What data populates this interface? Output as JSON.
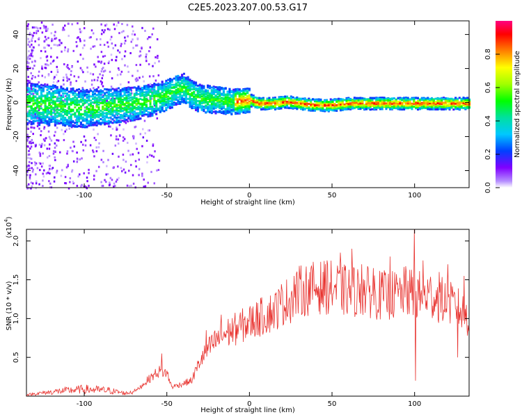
{
  "title": "C2E5.2023.207.00.53.G17",
  "chart_data": [
    {
      "type": "heatmap",
      "xlabel": "Height of straight line (km)",
      "ylabel": "Frequency (Hz)",
      "xlim": [
        -135,
        133
      ],
      "ylim": [
        -50,
        48
      ],
      "x_ticks": [
        "-100",
        "-50",
        "0",
        "50",
        "100"
      ],
      "x_tick_values": [
        -100,
        -50,
        0,
        50,
        100
      ],
      "y_ticks": [
        "-40",
        "-20",
        "0",
        "20",
        "40"
      ],
      "y_tick_values": [
        -40,
        -20,
        0,
        20,
        40
      ],
      "colorbar": {
        "label": "Normalized spectral amplitude",
        "ticks": [
          "0.0",
          "0.2",
          "0.4",
          "0.6",
          "0.8"
        ],
        "tick_values": [
          0.0,
          0.2,
          0.4,
          0.6,
          0.8
        ],
        "range": [
          0,
          1
        ]
      },
      "ridge_center_hz": [
        [
          -135,
          0
        ],
        [
          -120,
          -1
        ],
        [
          -100,
          -3
        ],
        [
          -90,
          -2
        ],
        [
          -80,
          -1
        ],
        [
          -70,
          0
        ],
        [
          -60,
          2
        ],
        [
          -50,
          5
        ],
        [
          -45,
          8
        ],
        [
          -40,
          9
        ],
        [
          -35,
          5
        ],
        [
          -30,
          3
        ],
        [
          -20,
          2
        ],
        [
          -10,
          1
        ],
        [
          0,
          2
        ],
        [
          5,
          0
        ],
        [
          15,
          0
        ],
        [
          22,
          1
        ],
        [
          30,
          0
        ],
        [
          40,
          -1
        ],
        [
          50,
          -1
        ],
        [
          60,
          0
        ],
        [
          80,
          0
        ],
        [
          100,
          0
        ],
        [
          133,
          0
        ]
      ]
    },
    {
      "type": "line",
      "xlabel": "Height of straight line (km)",
      "ylabel": "SNR (10 * v/v)",
      "scale_label": "(x10",
      "scale_exp": "4",
      "scale_close": ")",
      "xlim": [
        -135,
        133
      ],
      "ylim": [
        0,
        2.15
      ],
      "x_ticks": [
        "-100",
        "-50",
        "0",
        "50",
        "100"
      ],
      "x_tick_values": [
        -100,
        -50,
        0,
        50,
        100
      ],
      "y_ticks": [
        "0.5",
        "1.0",
        "1.5",
        "2.0"
      ],
      "y_tick_values": [
        0.5,
        1.0,
        1.5,
        2.0
      ],
      "color": "#e8322e",
      "envelope": [
        [
          -135,
          0.02
        ],
        [
          -120,
          0.06
        ],
        [
          -100,
          0.1
        ],
        [
          -85,
          0.08
        ],
        [
          -75,
          0.04
        ],
        [
          -68,
          0.08
        ],
        [
          -62,
          0.2
        ],
        [
          -55,
          0.32
        ],
        [
          -50,
          0.3
        ],
        [
          -47,
          0.12
        ],
        [
          -42,
          0.15
        ],
        [
          -35,
          0.2
        ],
        [
          -30,
          0.45
        ],
        [
          -25,
          0.6
        ],
        [
          -20,
          0.72
        ],
        [
          -15,
          0.8
        ],
        [
          -10,
          0.85
        ],
        [
          -5,
          0.9
        ],
        [
          0,
          0.95
        ],
        [
          5,
          1.0
        ],
        [
          10,
          1.05
        ],
        [
          15,
          1.1
        ],
        [
          20,
          1.2
        ],
        [
          25,
          1.25
        ],
        [
          30,
          1.35
        ],
        [
          40,
          1.4
        ],
        [
          50,
          1.4
        ],
        [
          60,
          1.35
        ],
        [
          70,
          1.35
        ],
        [
          80,
          1.3
        ],
        [
          90,
          1.3
        ],
        [
          95,
          1.35
        ],
        [
          100,
          1.3
        ],
        [
          110,
          1.3
        ],
        [
          120,
          1.2
        ],
        [
          125,
          1.15
        ],
        [
          133,
          1.0
        ]
      ],
      "spikes": [
        [
          -53,
          0.55
        ],
        [
          -26,
          0.85
        ],
        [
          -17,
          1.05
        ],
        [
          5,
          1.2
        ],
        [
          20,
          1.35
        ],
        [
          27,
          1.55
        ],
        [
          47,
          1.75
        ],
        [
          55,
          1.85
        ],
        [
          62,
          1.9
        ],
        [
          68,
          1.7
        ],
        [
          75,
          1.65
        ],
        [
          85,
          1.8
        ],
        [
          95,
          1.6
        ],
        [
          100,
          2.15
        ],
        [
          100.5,
          0.2
        ],
        [
          105,
          1.75
        ],
        [
          115,
          1.6
        ],
        [
          120,
          1.7
        ],
        [
          126,
          0.5
        ],
        [
          130,
          1.55
        ]
      ]
    }
  ]
}
